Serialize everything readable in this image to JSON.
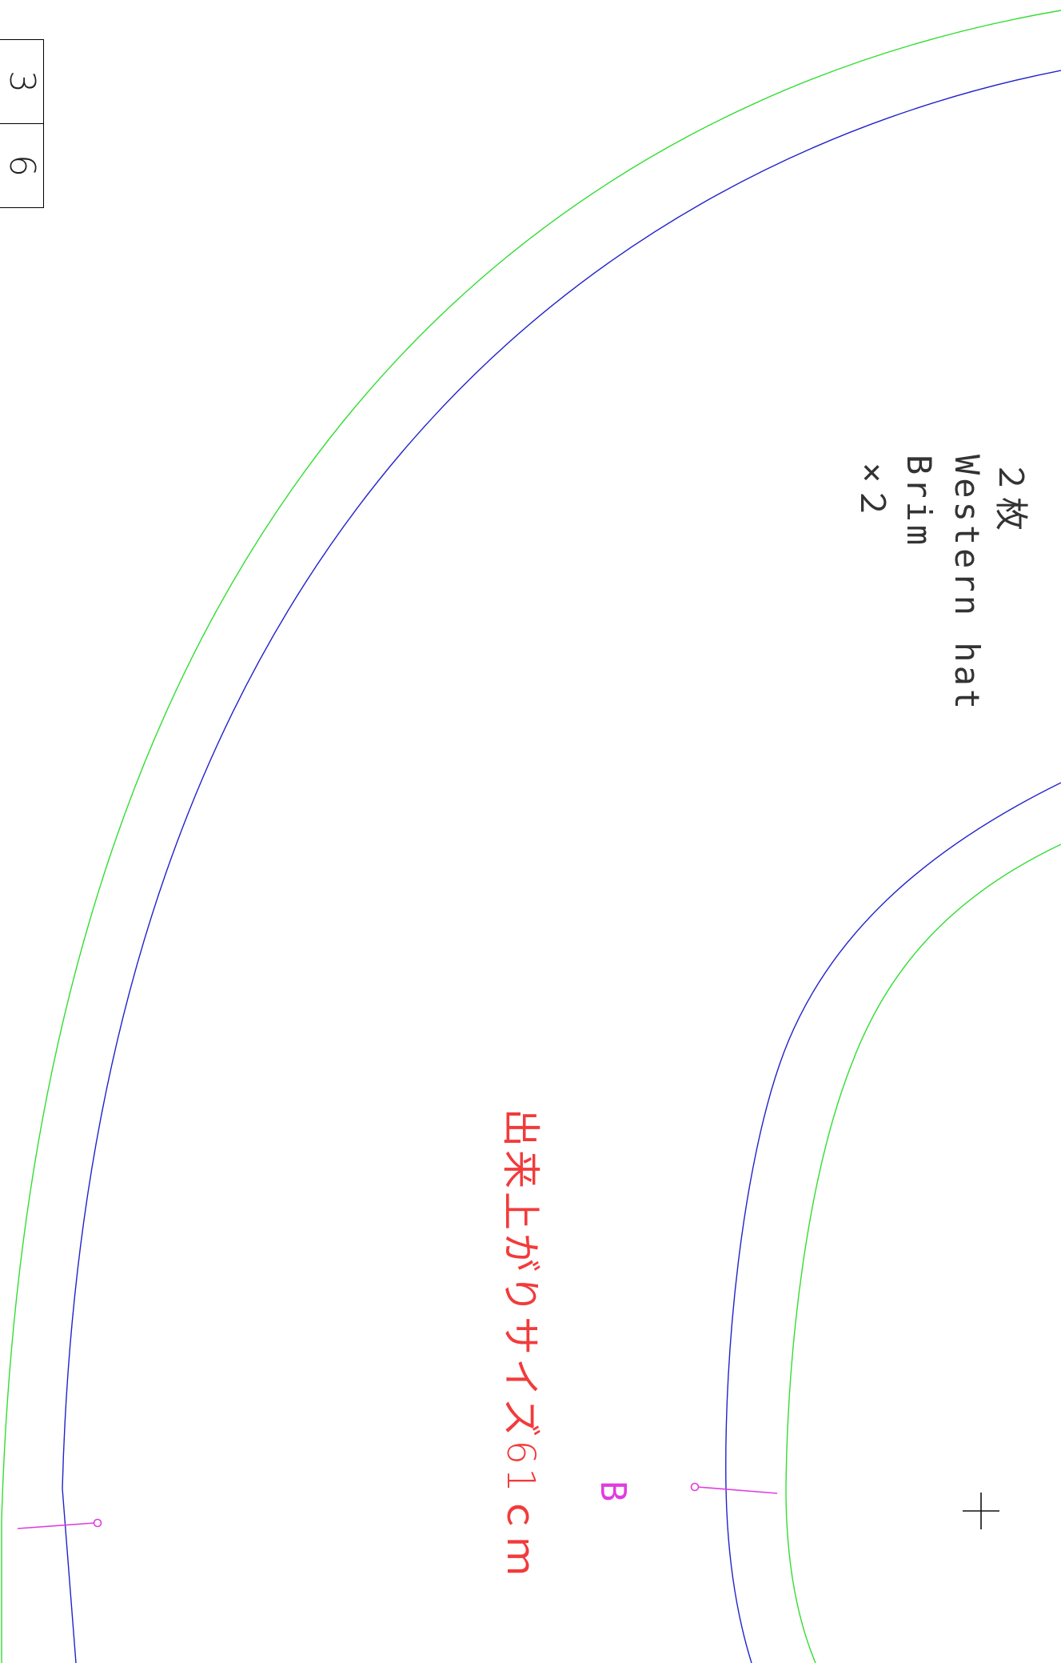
{
  "page_box": {
    "sheet": "3",
    "total": "6"
  },
  "piece_label": {
    "count": "２枚",
    "title": "Western hat",
    "part": "Brim",
    "quantity": "×２"
  },
  "notch_label": "B",
  "finished_size": "出来上がりサイズ61ｃｍ",
  "colors": {
    "cut_line": "#33dd33",
    "seam_line": "#2222cc",
    "notch": "#e13ce0",
    "size_text": "#f23b3b",
    "text": "#333333"
  }
}
